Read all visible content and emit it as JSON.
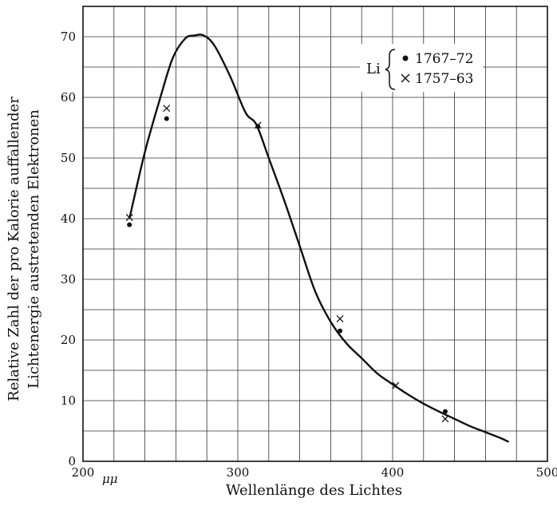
{
  "chart_data": {
    "type": "scatter",
    "title": "",
    "xlabel": "Wellenlänge des Lichtes",
    "xunit_label": "μμ",
    "ylabel": "Relative Zahl der pro Kalorie auffallender",
    "ylabel2": "Lichtenergie austretenden Elektronen",
    "xlim": [
      200,
      500
    ],
    "ylim": [
      0,
      75
    ],
    "x_ticks": [
      200,
      300,
      400,
      500
    ],
    "y_ticks": [
      0,
      10,
      20,
      30,
      40,
      50,
      60,
      70
    ],
    "x_minor_step": 20,
    "y_minor_step": 5,
    "grid": true,
    "legend": {
      "position": "top-right",
      "prefix": "Li",
      "entries": [
        {
          "marker": "dot",
          "label": "1767–72"
        },
        {
          "marker": "cross",
          "label": "1757–63"
        }
      ]
    },
    "series": [
      {
        "name": "1767–72",
        "marker": "dot",
        "points": [
          [
            230,
            39
          ],
          [
            254,
            56.5
          ],
          [
            313,
            55.2
          ],
          [
            366,
            21.5
          ],
          [
            434,
            8.2
          ]
        ]
      },
      {
        "name": "1757–63",
        "marker": "cross",
        "points": [
          [
            230,
            40.2
          ],
          [
            254,
            58.2
          ],
          [
            313,
            55.4
          ],
          [
            366,
            23.5
          ],
          [
            402,
            12.5
          ],
          [
            434,
            7
          ]
        ]
      }
    ],
    "curve": [
      [
        230,
        40
      ],
      [
        240,
        51
      ],
      [
        250,
        60
      ],
      [
        258,
        66.5
      ],
      [
        266,
        69.7
      ],
      [
        272,
        70.2
      ],
      [
        278,
        70.2
      ],
      [
        285,
        68.5
      ],
      [
        295,
        63.5
      ],
      [
        305,
        57.5
      ],
      [
        312,
        55.5
      ],
      [
        320,
        50
      ],
      [
        330,
        43
      ],
      [
        340,
        35.5
      ],
      [
        350,
        28
      ],
      [
        360,
        23
      ],
      [
        370,
        19.5
      ],
      [
        380,
        17
      ],
      [
        390,
        14.5
      ],
      [
        400,
        12.7
      ],
      [
        410,
        11
      ],
      [
        420,
        9.5
      ],
      [
        430,
        8.2
      ],
      [
        440,
        7
      ],
      [
        450,
        5.8
      ],
      [
        460,
        4.8
      ],
      [
        470,
        3.8
      ],
      [
        475,
        3.2
      ]
    ]
  }
}
